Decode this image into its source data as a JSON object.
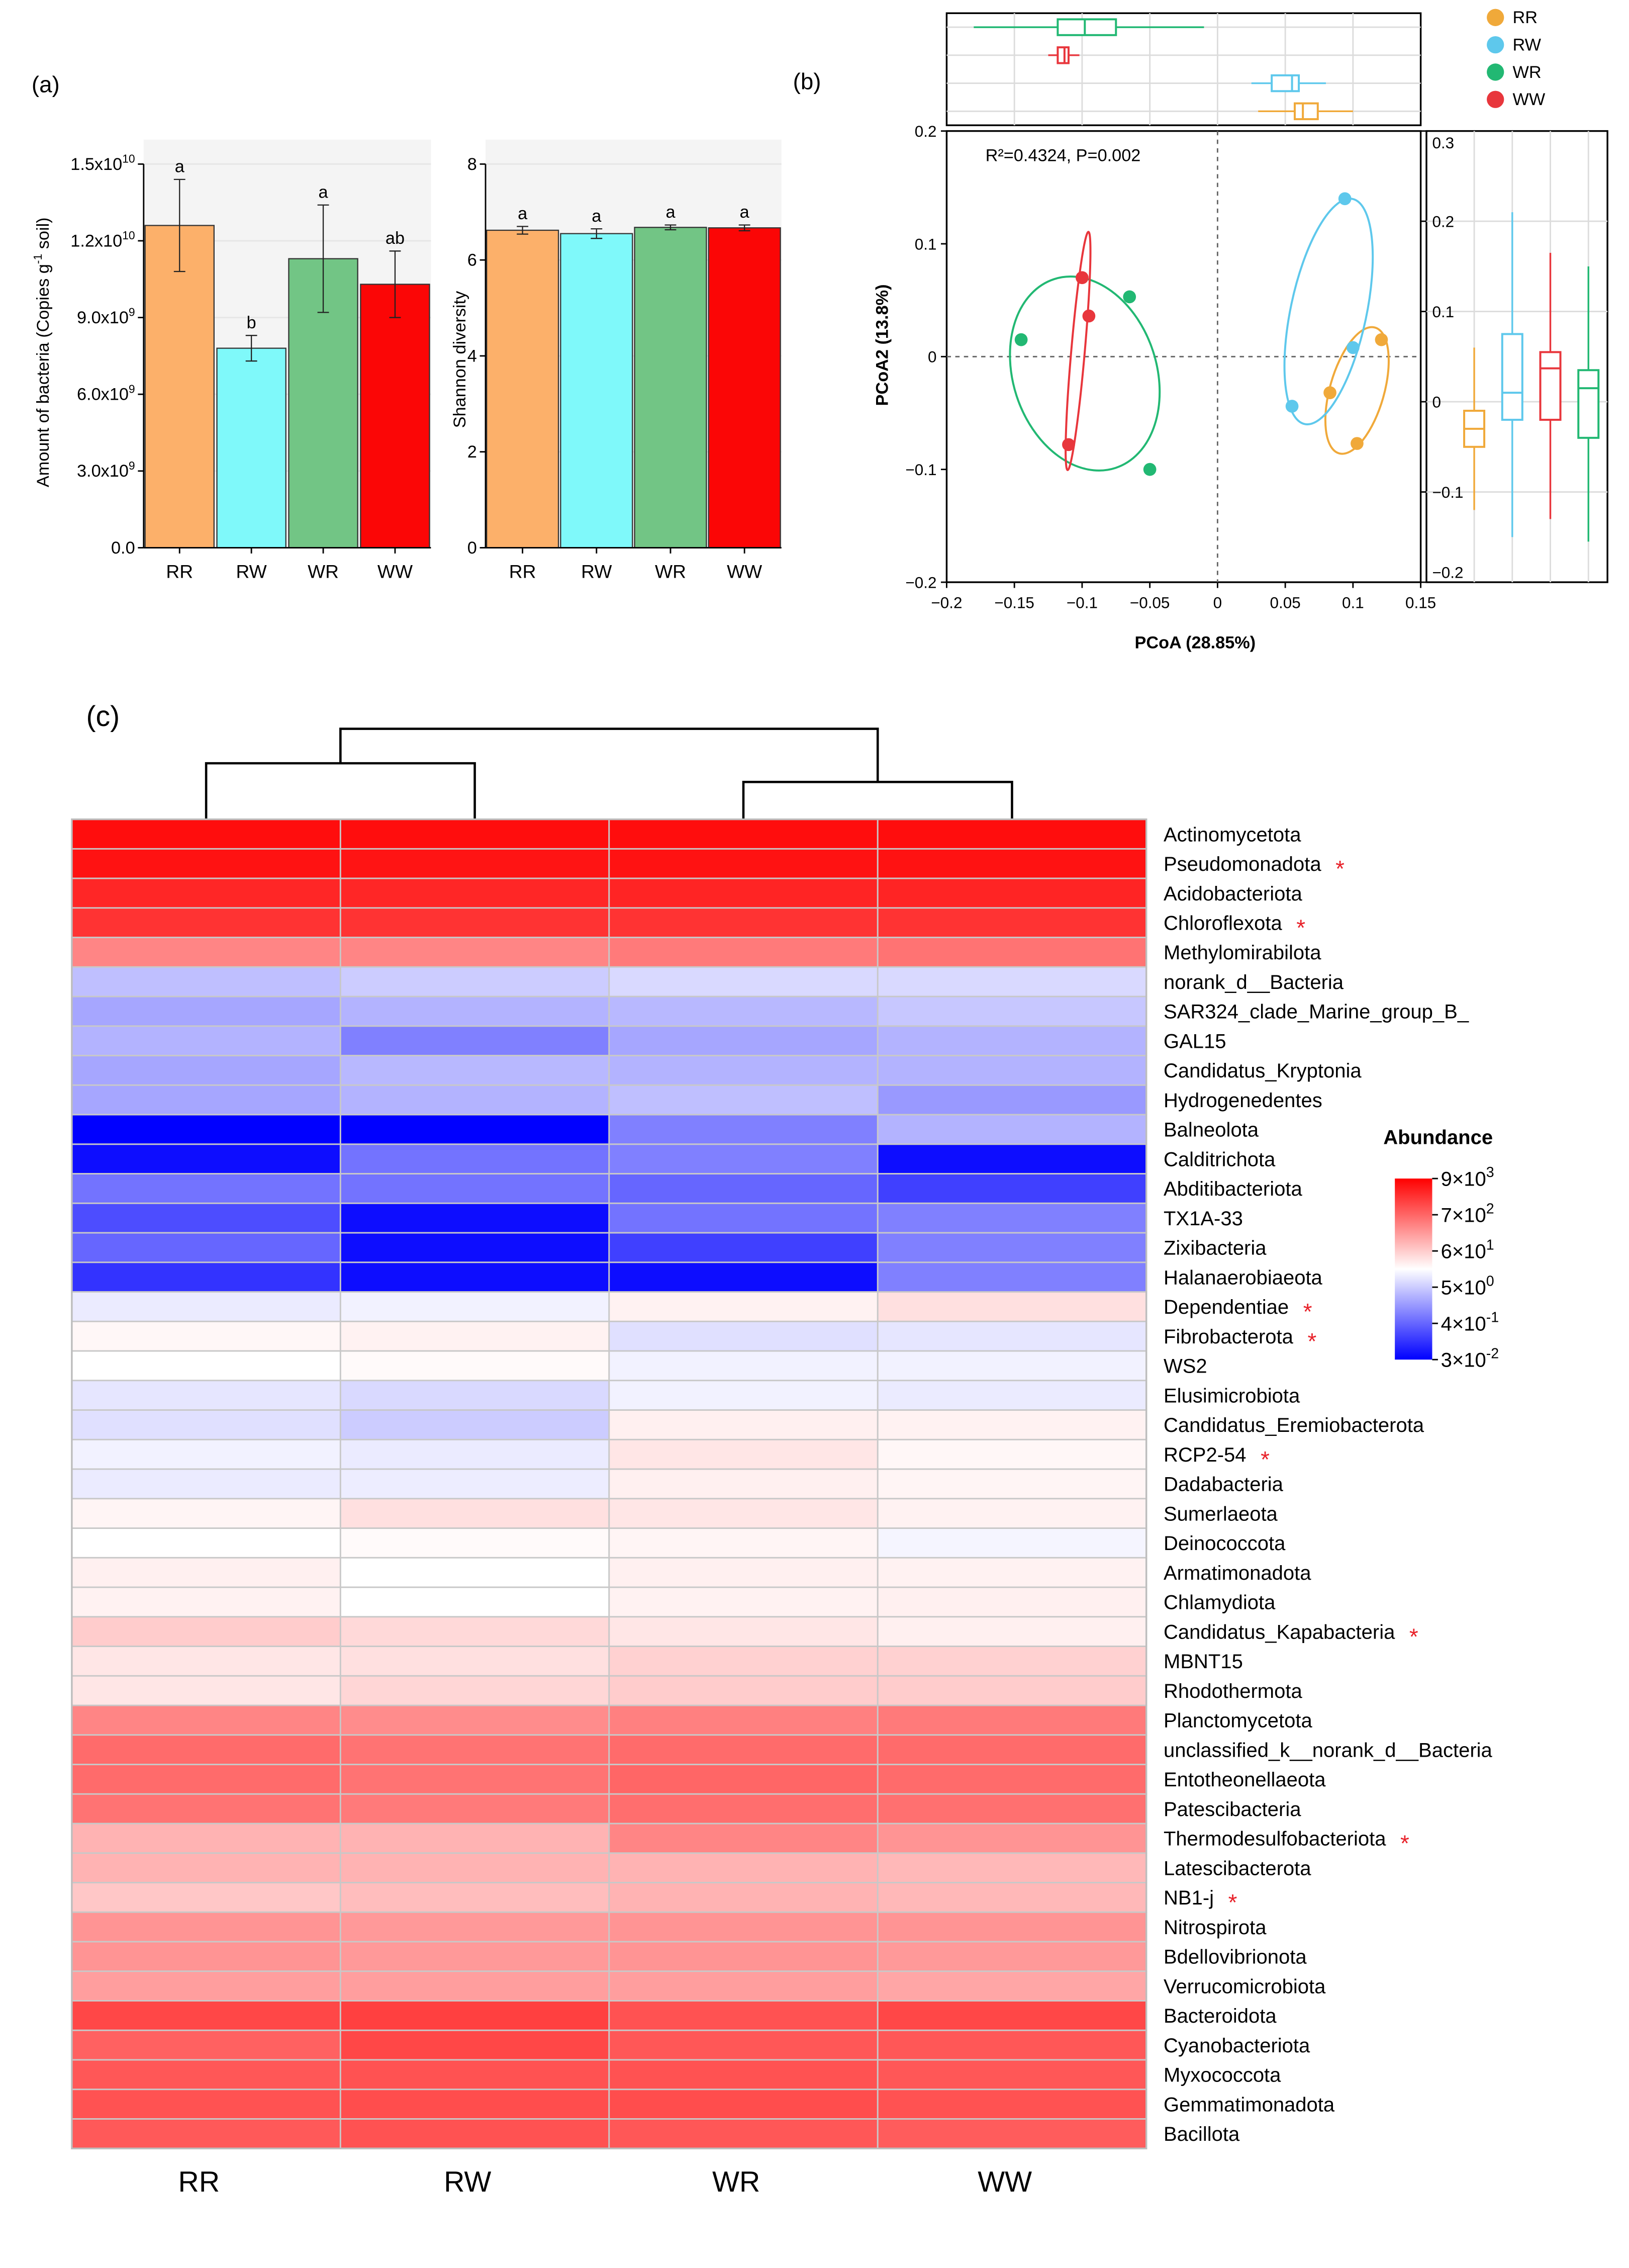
{
  "colors": {
    "RR": "#fcb06a",
    "RW": "#7ff9fa",
    "WR": "#72c585",
    "WW": "#fb0606",
    "pcoa_RR": "#f0a93a",
    "pcoa_RW": "#5ec8ec",
    "pcoa_WR": "#22b873",
    "pcoa_WW": "#e8363c"
  },
  "chart_data": [
    {
      "id": "panel_a_left",
      "panel_label": "(a)",
      "type": "bar",
      "categories": [
        "RR",
        "RW",
        "WR",
        "WW"
      ],
      "values": [
        12600000000.0,
        7800000000.0,
        11300000000.0,
        10300000000.0
      ],
      "errors": [
        1800000000.0,
        500000000.0,
        2100000000.0,
        1300000000.0
      ],
      "letters": [
        "a",
        "b",
        "a",
        "ab"
      ],
      "ylabel": "Amount of bacteria (Copies g-1 soil)",
      "ylabel_main": "Amount of bacteria (Copies g",
      "ylabel_sup": "-1",
      "ylabel_tail": " soil)",
      "ylim": [
        0,
        15000000000.0
      ],
      "ytick_values": [
        0,
        3000000000.0,
        6000000000.0,
        9000000000.0,
        12000000000.0,
        15000000000.0
      ],
      "ytick_base": [
        "0.0",
        "3.0x10",
        "6.0x10",
        "9.0x10",
        "1.2x10",
        "1.5x10"
      ],
      "ytick_exp": [
        "",
        "9",
        "9",
        "9",
        "10",
        "10"
      ]
    },
    {
      "id": "panel_a_right",
      "type": "bar",
      "categories": [
        "RR",
        "RW",
        "WR",
        "WW"
      ],
      "values": [
        6.62,
        6.55,
        6.68,
        6.67
      ],
      "errors": [
        0.08,
        0.1,
        0.05,
        0.06
      ],
      "letters": [
        "a",
        "a",
        "a",
        "a"
      ],
      "ylabel": "Shannon diversity",
      "ylim": [
        0,
        8
      ],
      "ytick_values": [
        0,
        2,
        4,
        6,
        8
      ],
      "ytick_labels": [
        "0",
        "2",
        "4",
        "6",
        "8"
      ]
    },
    {
      "id": "panel_b",
      "panel_label": "(b)",
      "type": "scatter",
      "xlabel": "PCoA (28.85%)",
      "ylabel": "PCoA2 (13.8%)",
      "annotation": "R²=0.4324, P=0.002",
      "xlim": [
        -0.2,
        0.15
      ],
      "ylim": [
        -0.2,
        0.2
      ],
      "xticks": [
        -0.2,
        -0.15,
        -0.1,
        -0.05,
        0,
        0.05,
        0.1,
        0.15
      ],
      "xtick_labels": [
        "−0.2",
        "−0.15",
        "−0.1",
        "−0.05",
        "0",
        "0.05",
        "0.1",
        "0.15"
      ],
      "yticks": [
        -0.2,
        -0.1,
        0,
        0.1,
        0.2
      ],
      "ytick_labels": [
        "−0.2",
        "−0.1",
        "0",
        "0.1",
        "0.2"
      ],
      "legend": [
        "RR",
        "RW",
        "WR",
        "WW"
      ],
      "series": [
        {
          "name": "RR",
          "points": [
            [
              0.121,
              0.015
            ],
            [
              0.083,
              -0.032
            ],
            [
              0.103,
              -0.077
            ]
          ]
        },
        {
          "name": "RW",
          "points": [
            [
              0.094,
              0.14
            ],
            [
              0.1,
              0.008
            ],
            [
              0.055,
              -0.044
            ]
          ]
        },
        {
          "name": "WR",
          "points": [
            [
              -0.065,
              0.053
            ],
            [
              -0.145,
              0.015
            ],
            [
              -0.05,
              -0.1
            ]
          ]
        },
        {
          "name": "WW",
          "points": [
            [
              -0.1,
              0.07
            ],
            [
              -0.095,
              0.036
            ],
            [
              -0.11,
              -0.078
            ]
          ]
        }
      ],
      "ellipses": [
        {
          "name": "RR",
          "cx": 0.103,
          "cy": -0.03,
          "rx": 0.02,
          "ry": 0.058,
          "angle_deg": 16
        },
        {
          "name": "RW",
          "cx": 0.082,
          "cy": 0.04,
          "rx": 0.028,
          "ry": 0.102,
          "angle_deg": 12
        },
        {
          "name": "WR",
          "cx": -0.098,
          "cy": -0.015,
          "rx": 0.053,
          "ry": 0.088,
          "angle_deg": -18
        },
        {
          "name": "WW",
          "cx": -0.103,
          "cy": 0.005,
          "rx": 0.005,
          "ry": 0.106,
          "angle_deg": 5
        }
      ],
      "top_boxplot": [
        {
          "name": "WR",
          "min": -0.18,
          "q1": -0.118,
          "median": -0.098,
          "q3": -0.075,
          "max": -0.01
        },
        {
          "name": "WW",
          "min": -0.125,
          "q1": -0.118,
          "median": -0.113,
          "q3": -0.11,
          "max": -0.102
        },
        {
          "name": "RW",
          "min": 0.025,
          "q1": 0.04,
          "median": 0.055,
          "q3": 0.06,
          "max": 0.08
        },
        {
          "name": "RR",
          "min": 0.03,
          "q1": 0.057,
          "median": 0.063,
          "q3": 0.074,
          "max": 0.1
        }
      ],
      "right_boxplot": {
        "ylim": [
          -0.2,
          0.3
        ],
        "yticks": [
          -0.2,
          -0.1,
          0,
          0.1,
          0.2,
          0.3
        ],
        "ytick_labels": [
          "−0.2",
          "−0.1",
          "0",
          "0.1",
          "0.2",
          "0.3"
        ],
        "boxes": [
          {
            "name": "RR",
            "min": -0.12,
            "q1": -0.05,
            "median": -0.03,
            "q3": -0.01,
            "max": 0.06
          },
          {
            "name": "RW",
            "min": -0.15,
            "q1": -0.02,
            "median": 0.01,
            "q3": 0.075,
            "max": 0.21
          },
          {
            "name": "WW",
            "min": -0.13,
            "q1": -0.02,
            "median": 0.037,
            "q3": 0.055,
            "max": 0.165
          },
          {
            "name": "WR",
            "min": -0.155,
            "q1": -0.04,
            "median": 0.015,
            "q3": 0.035,
            "max": 0.15
          }
        ]
      }
    },
    {
      "id": "panel_c",
      "panel_label": "(c)",
      "type": "heatmap",
      "columns": [
        "RR",
        "RW",
        "WR",
        "WW"
      ],
      "rows": [
        "Actinomycetota",
        "Pseudomonadota",
        "Acidobacteriota",
        "Chloroflexota",
        "Methylomirabilota",
        "norank_d__Bacteria",
        "SAR324_clade_Marine_group_B_",
        "GAL15",
        "Candidatus_Kryptonia",
        "Hydrogenedentes",
        "Balneolota",
        "Calditrichota",
        "Abditibacteriota",
        "TX1A-33",
        "Zixibacteria",
        "Halanaerobiaeota",
        "Dependentiae",
        "Fibrobacterota",
        "WS2",
        "Elusimicrobiota",
        "Candidatus_Eremiobacterota",
        "RCP2-54",
        "Dadabacteria",
        "Sumerlaeota",
        "Deinococcota",
        "Armatimonadota",
        "Chlamydiota",
        "Candidatus_Kapabacteria",
        "MBNT15",
        "Rhodothermota",
        "Planctomycetota",
        "unclassified_k__norank_d__Bacteria",
        "Entotheonellaeota",
        "Patescibacteria",
        "Thermodesulfobacteriota",
        "Latescibacterota",
        "NB1-j",
        "Nitrospirota",
        "Bdellovibrionota",
        "Verrucomicrobiota",
        "Bacteroidota",
        "Cyanobacteriota",
        "Myxococcota",
        "Gemmatimonadota",
        "Bacillota"
      ],
      "significant": [
        false,
        true,
        false,
        true,
        false,
        false,
        false,
        false,
        false,
        false,
        false,
        false,
        false,
        false,
        false,
        false,
        true,
        true,
        false,
        false,
        false,
        true,
        false,
        false,
        false,
        false,
        false,
        true,
        false,
        false,
        false,
        false,
        false,
        false,
        true,
        false,
        true,
        false,
        false,
        false,
        false,
        false,
        false,
        false,
        false
      ],
      "scale": [
        -1,
        1
      ],
      "values": [
        [
          0.95,
          0.95,
          0.95,
          0.95
        ],
        [
          0.93,
          0.92,
          0.93,
          0.93
        ],
        [
          0.85,
          0.85,
          0.86,
          0.86
        ],
        [
          0.8,
          0.8,
          0.8,
          0.8
        ],
        [
          0.48,
          0.48,
          0.52,
          0.55
        ],
        [
          -0.25,
          -0.2,
          -0.15,
          -0.15
        ],
        [
          -0.35,
          -0.3,
          -0.28,
          -0.22
        ],
        [
          -0.3,
          -0.5,
          -0.35,
          -0.3
        ],
        [
          -0.35,
          -0.28,
          -0.3,
          -0.3
        ],
        [
          -0.35,
          -0.3,
          -0.25,
          -0.4
        ],
        [
          -1.0,
          -1.0,
          -0.5,
          -0.3
        ],
        [
          -0.95,
          -0.55,
          -0.5,
          -0.95
        ],
        [
          -0.55,
          -0.55,
          -0.6,
          -0.75
        ],
        [
          -0.7,
          -0.95,
          -0.55,
          -0.5
        ],
        [
          -0.6,
          -0.95,
          -0.75,
          -0.5
        ],
        [
          -0.8,
          -0.95,
          -0.95,
          -0.5
        ],
        [
          -0.08,
          -0.05,
          0.05,
          0.12
        ],
        [
          0.03,
          0.05,
          -0.12,
          -0.1
        ],
        [
          0.0,
          0.02,
          -0.05,
          -0.05
        ],
        [
          -0.1,
          -0.15,
          -0.05,
          -0.08
        ],
        [
          -0.12,
          -0.2,
          0.06,
          0.05
        ],
        [
          -0.05,
          -0.08,
          0.1,
          0.03
        ],
        [
          -0.08,
          -0.07,
          0.06,
          0.04
        ],
        [
          0.04,
          0.12,
          0.1,
          0.05
        ],
        [
          0.0,
          0.02,
          0.04,
          -0.04
        ],
        [
          0.06,
          0.0,
          0.06,
          0.05
        ],
        [
          0.05,
          0.0,
          0.05,
          0.06
        ],
        [
          0.2,
          0.15,
          0.1,
          0.06
        ],
        [
          0.1,
          0.12,
          0.18,
          0.18
        ],
        [
          0.1,
          0.16,
          0.2,
          0.2
        ],
        [
          0.48,
          0.45,
          0.5,
          0.52
        ],
        [
          0.58,
          0.55,
          0.58,
          0.58
        ],
        [
          0.58,
          0.55,
          0.6,
          0.58
        ],
        [
          0.55,
          0.52,
          0.57,
          0.56
        ],
        [
          0.3,
          0.3,
          0.48,
          0.42
        ],
        [
          0.3,
          0.3,
          0.3,
          0.28
        ],
        [
          0.22,
          0.26,
          0.3,
          0.28
        ],
        [
          0.42,
          0.4,
          0.42,
          0.42
        ],
        [
          0.42,
          0.4,
          0.42,
          0.4
        ],
        [
          0.38,
          0.38,
          0.38,
          0.35
        ],
        [
          0.72,
          0.75,
          0.68,
          0.72
        ],
        [
          0.62,
          0.72,
          0.66,
          0.66
        ],
        [
          0.66,
          0.68,
          0.68,
          0.66
        ],
        [
          0.68,
          0.7,
          0.7,
          0.68
        ],
        [
          0.65,
          0.68,
          0.66,
          0.64
        ]
      ],
      "colorbar": {
        "title": "Abundance",
        "labels_base": [
          "9×10",
          "7×10",
          "6×10",
          "5×10",
          "4×10",
          "3×10"
        ],
        "labels_exp": [
          "3",
          "2",
          "1",
          "0",
          "-1",
          "-2"
        ]
      },
      "dendrogram": "((RR,RW),(WR,WW))"
    }
  ]
}
